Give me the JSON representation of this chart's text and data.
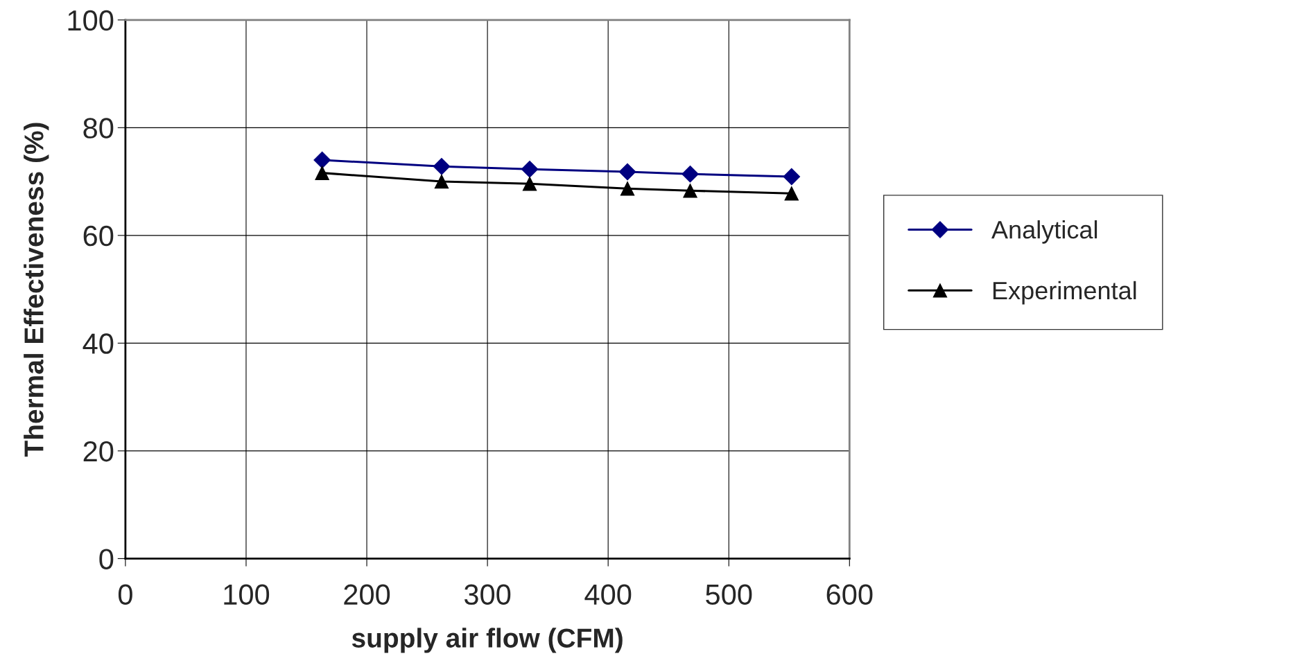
{
  "chart_data": {
    "type": "line",
    "xlabel": "supply air flow (CFM)",
    "ylabel": "Thermal Effectiveness (%)",
    "x": [
      163,
      262,
      335,
      416,
      468,
      552
    ],
    "series": [
      {
        "name": "Analytical",
        "color": "#000080",
        "marker": "diamond",
        "values": [
          74.0,
          72.8,
          72.3,
          71.8,
          71.4,
          70.9
        ]
      },
      {
        "name": "Experimental",
        "color": "#000000",
        "marker": "triangle",
        "values": [
          71.6,
          70.0,
          69.6,
          68.7,
          68.3,
          67.8
        ]
      }
    ],
    "xlim": [
      0,
      600
    ],
    "xticks": [
      0,
      100,
      200,
      300,
      400,
      500,
      600
    ],
    "ylim": [
      0,
      100
    ],
    "yticks": [
      0,
      20,
      40,
      60,
      80,
      100
    ],
    "grid": true,
    "legend": "right",
    "line_style": "solid"
  }
}
